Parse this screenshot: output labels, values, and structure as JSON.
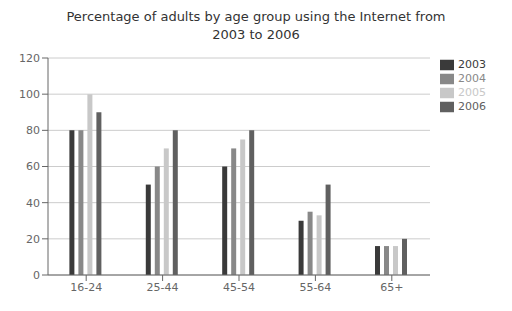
{
  "chart_data": {
    "type": "bar",
    "title": "Percentage of adults by age group using the Internet from\n2003 to 2006",
    "categories": [
      "16-24",
      "25-44",
      "45-54",
      "55-64",
      "65+"
    ],
    "series": [
      {
        "name": "2003",
        "color": "#3a3a3a",
        "values": [
          80,
          50,
          60,
          30,
          16
        ]
      },
      {
        "name": "2004",
        "color": "#888888",
        "values": [
          80,
          60,
          70,
          35,
          16
        ]
      },
      {
        "name": "2005",
        "color": "#c8c8c8",
        "values": [
          100,
          70,
          75,
          33,
          16
        ]
      },
      {
        "name": "2006",
        "color": "#606060",
        "values": [
          90,
          80,
          80,
          50,
          20
        ]
      }
    ],
    "ylim": [
      0,
      120
    ],
    "yticks": [
      0,
      20,
      40,
      60,
      80,
      100,
      120
    ],
    "grid": true,
    "legend": "upper right"
  }
}
